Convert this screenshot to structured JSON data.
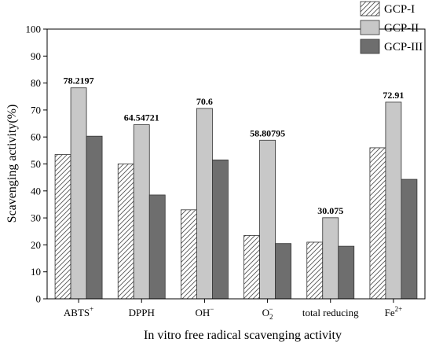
{
  "chart_data": {
    "type": "bar",
    "xlabel": "In vitro free radical scavenging activity",
    "ylabel": "Scavenging activity(%)",
    "ylim": [
      0,
      100
    ],
    "yticks": [
      0,
      10,
      20,
      30,
      40,
      50,
      60,
      70,
      80,
      90,
      100
    ],
    "grid": false,
    "legend_position": "top-right",
    "categories": [
      {
        "base": "ABTS",
        "sup": "+",
        "sub": ""
      },
      {
        "base": "DPPH",
        "sup": "",
        "sub": ""
      },
      {
        "base": "OH",
        "sup": "−",
        "sub": ""
      },
      {
        "base": "O",
        "sub": "2",
        "sup": "−"
      },
      {
        "base": "total reducing",
        "sup": "",
        "sub": ""
      },
      {
        "base": "Fe",
        "sup": "2+",
        "sub": ""
      }
    ],
    "series": [
      {
        "name": "GCP-I",
        "values": [
          53.5,
          50,
          33,
          23.5,
          21,
          56
        ],
        "color": "#c8c8c8",
        "pattern": "hatch"
      },
      {
        "name": "GCP-II",
        "values": [
          78.2197,
          64.54721,
          70.6,
          58.80795,
          30.075,
          72.91
        ],
        "color": "#c8c8c8",
        "pattern": "solid"
      },
      {
        "name": "GCP-III",
        "values": [
          60.3,
          38.5,
          51.5,
          20.5,
          19.5,
          44.3
        ],
        "color": "#6e6e6e",
        "pattern": "solid"
      }
    ],
    "data_labels": [
      {
        "series": 1,
        "category": 0,
        "text": "78.2197"
      },
      {
        "series": 1,
        "category": 1,
        "text": "64.54721"
      },
      {
        "series": 1,
        "category": 2,
        "text": "70.6"
      },
      {
        "series": 1,
        "category": 3,
        "text": "58.80795"
      },
      {
        "series": 1,
        "category": 4,
        "text": "30.075"
      },
      {
        "series": 1,
        "category": 5,
        "text": "72.91"
      }
    ]
  }
}
